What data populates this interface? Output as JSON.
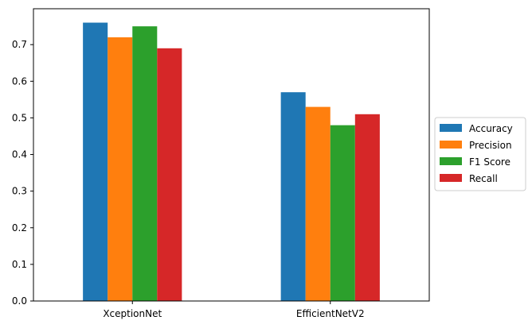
{
  "chart_data": {
    "type": "bar",
    "categories": [
      "XceptionNet",
      "EfficientNetV2"
    ],
    "series": [
      {
        "name": "Accuracy",
        "values": [
          0.76,
          0.57
        ]
      },
      {
        "name": "Precision",
        "values": [
          0.72,
          0.53
        ]
      },
      {
        "name": "F1 Score",
        "values": [
          0.75,
          0.48
        ]
      },
      {
        "name": "Recall",
        "values": [
          0.69,
          0.51
        ]
      }
    ],
    "colors": [
      "#1f77b4",
      "#ff7f0e",
      "#2ca02c",
      "#d62728"
    ],
    "yticks": [
      "0.0",
      "0.1",
      "0.2",
      "0.3",
      "0.4",
      "0.5",
      "0.6",
      "0.7"
    ],
    "ylim": [
      0,
      0.798
    ],
    "legend_position": "outside right, vertically centered",
    "grid": false
  }
}
